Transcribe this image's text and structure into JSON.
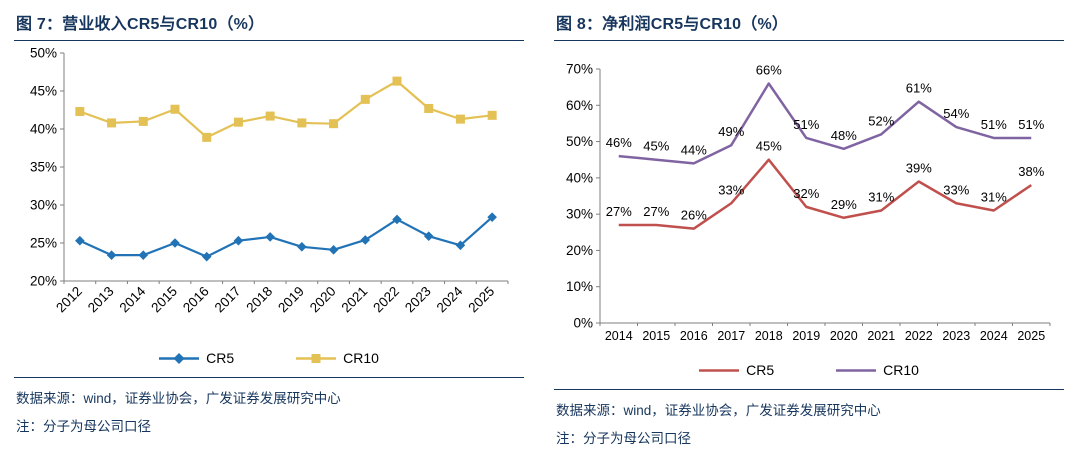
{
  "charts": [
    {
      "title": "图 7：营业收入CR5与CR10（%）",
      "source": "数据来源：wind，证券业协会，广发证券发展研究中心",
      "note": "注：分子为母公司口径"
    },
    {
      "title": "图 8：净利润CR5与CR10（%）",
      "source": "数据来源：wind，证券业协会，广发证券发展研究中心",
      "note": "注：分子为母公司口径"
    }
  ],
  "chart_data": [
    {
      "type": "line",
      "title": "营业收入CR5与CR10（%）",
      "categories": [
        "2012",
        "2013",
        "2014",
        "2015",
        "2016",
        "2017",
        "2018",
        "2019",
        "2020",
        "2021",
        "2022",
        "2023",
        "2024",
        "2025"
      ],
      "series": [
        {
          "name": "CR5",
          "color": "#2173B6",
          "marker": "diamond",
          "data_labels": false,
          "values": [
            25.3,
            23.4,
            23.4,
            25.0,
            23.2,
            25.3,
            25.8,
            24.5,
            24.1,
            25.4,
            28.1,
            25.9,
            24.7,
            28.4
          ]
        },
        {
          "name": "CR10",
          "color": "#E3C155",
          "marker": "square",
          "data_labels": false,
          "values": [
            42.3,
            40.8,
            41.0,
            42.6,
            38.9,
            40.9,
            41.7,
            40.8,
            40.7,
            43.9,
            46.3,
            42.7,
            41.3,
            41.8
          ]
        }
      ],
      "ylim": [
        20,
        50
      ],
      "yticks": [
        20,
        25,
        30,
        35,
        40,
        45,
        50
      ],
      "grid": false,
      "legend_position": "bottom",
      "x_label_rotation": -45
    },
    {
      "type": "line",
      "title": "净利润CR5与CR10（%）",
      "categories": [
        "2014",
        "2015",
        "2016",
        "2017",
        "2018",
        "2019",
        "2020",
        "2021",
        "2022",
        "2023",
        "2024",
        "2025"
      ],
      "series": [
        {
          "name": "CR5",
          "color": "#C0504D",
          "marker": "none",
          "data_labels": true,
          "values": [
            27,
            27,
            26,
            33,
            45,
            32,
            29,
            31,
            39,
            33,
            31,
            38
          ]
        },
        {
          "name": "CR10",
          "color": "#8064A2",
          "marker": "none",
          "data_labels": true,
          "values": [
            46,
            45,
            44,
            49,
            66,
            51,
            48,
            52,
            61,
            54,
            51,
            51
          ]
        }
      ],
      "ylim": [
        0,
        70
      ],
      "yticks": [
        0,
        10,
        20,
        30,
        40,
        50,
        60,
        70
      ],
      "grid": false,
      "legend_position": "bottom",
      "x_label_rotation": 0
    }
  ]
}
